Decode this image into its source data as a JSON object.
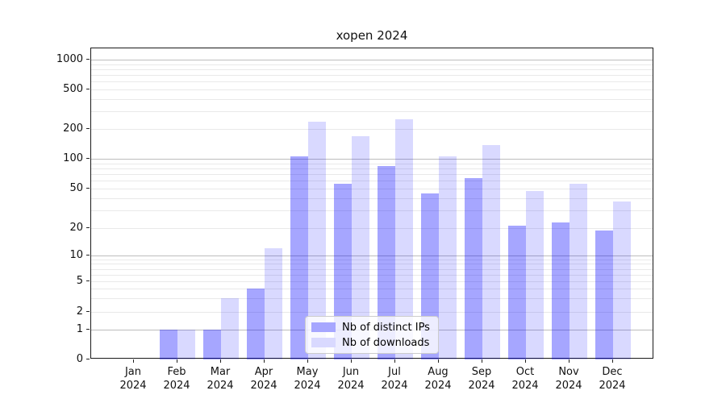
{
  "chart_data": {
    "type": "bar",
    "title": "xopen 2024",
    "x_categories": [
      "Jan",
      "Feb",
      "Mar",
      "Apr",
      "May",
      "Jun",
      "Jul",
      "Aug",
      "Sep",
      "Oct",
      "Nov",
      "Dec"
    ],
    "x_year": "2024",
    "xlabel": "",
    "ylabel": "",
    "yscale": "symlog",
    "ylim": [
      0,
      1400
    ],
    "y_ticks": [
      0,
      1,
      2,
      5,
      10,
      20,
      50,
      100,
      200,
      500,
      1000
    ],
    "grid": "on",
    "legend_position": "lower-center-inside",
    "series": [
      {
        "name": "Nb of distinct IPs",
        "color_hex": "#a6a6ff",
        "color_rgba": "rgba(0,0,255,0.35)",
        "values": [
          0,
          1,
          1,
          4,
          105,
          56,
          84,
          45,
          64,
          21,
          23,
          19
        ]
      },
      {
        "name": "Nb of downloads",
        "color_hex": "#d9d9ff",
        "color_rgba": "rgba(0,0,255,0.15)",
        "values": [
          0,
          1,
          3,
          12,
          235,
          170,
          250,
          105,
          138,
          47,
          56,
          37
        ]
      }
    ]
  }
}
